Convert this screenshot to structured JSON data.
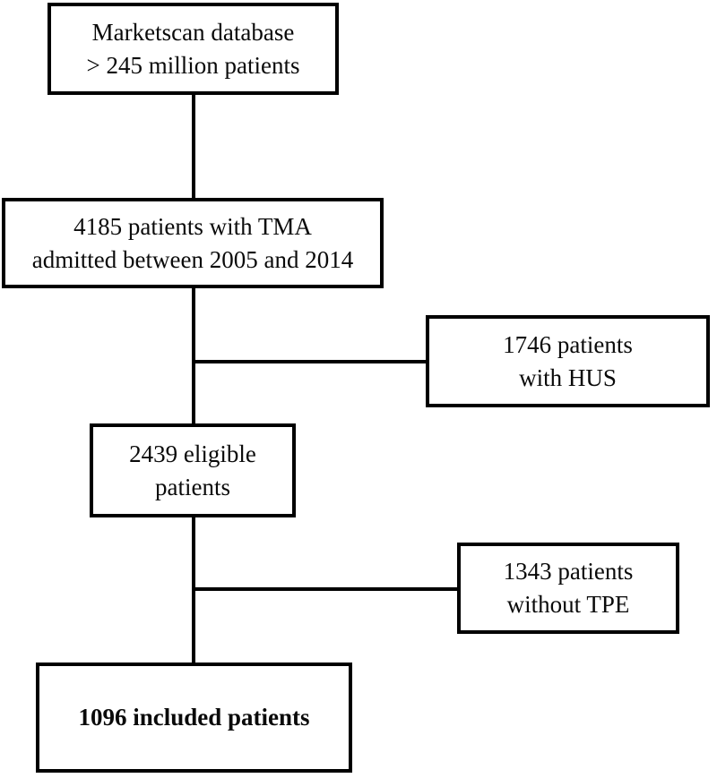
{
  "diagram": {
    "colors": {
      "background": "#ffffff",
      "line": "#000000",
      "text": "#0a0a0a"
    },
    "nodes": {
      "marketscan": {
        "lines": [
          "Marketscan database",
          "> 245 million patients"
        ]
      },
      "tma": {
        "lines": [
          "4185 patients with TMA",
          "admitted between 2005 and 2014"
        ]
      },
      "hus": {
        "lines": [
          "1746 patients",
          "with HUS"
        ]
      },
      "eligible": {
        "lines": [
          "2439 eligible",
          "patients"
        ]
      },
      "tpe": {
        "lines": [
          "1343 patients",
          "without TPE"
        ]
      },
      "included": {
        "lines": [
          "1096 included patients"
        ]
      }
    }
  }
}
